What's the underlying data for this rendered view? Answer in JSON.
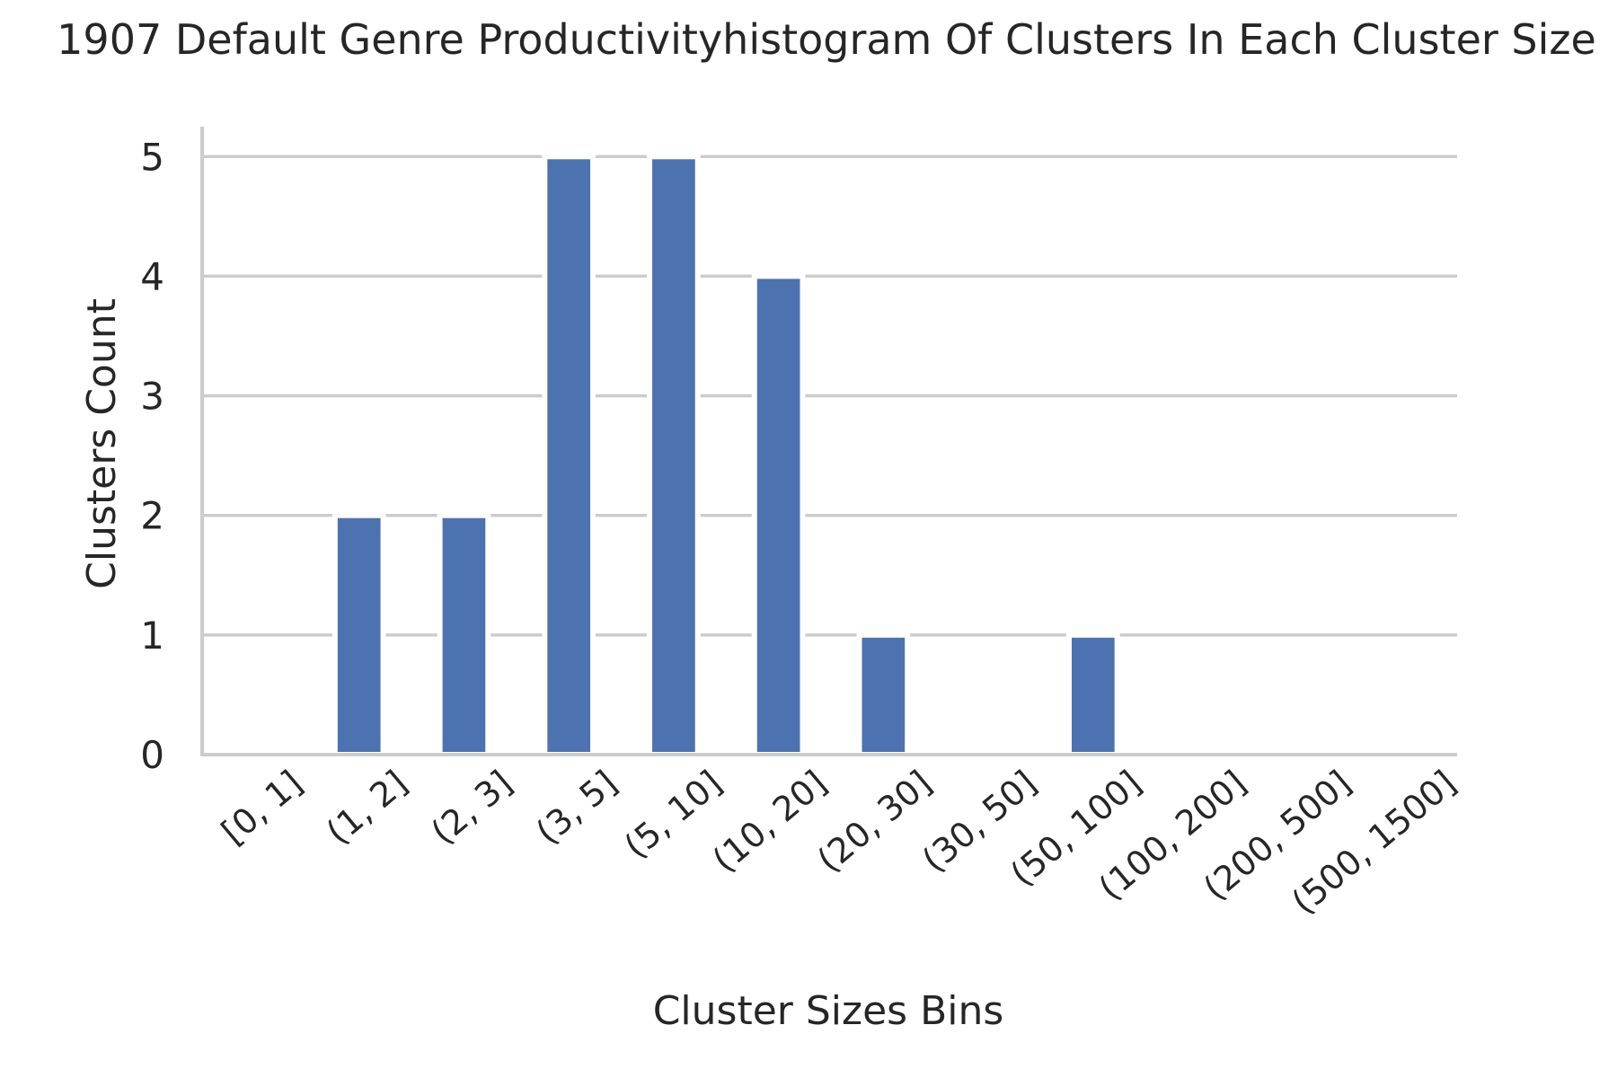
{
  "chart_data": {
    "type": "bar",
    "title": "1907 Default Genre Productivityhistogram Of Clusters In Each Cluster Size",
    "xlabel": "Cluster Sizes Bins",
    "ylabel": "Clusters Count",
    "categories": [
      "[0, 1]",
      "(1, 2]",
      "(2, 3]",
      "(3, 5]",
      "(5, 10]",
      "(10, 20]",
      "(20, 30]",
      "(30, 50]",
      "(50, 100]",
      "(100, 200]",
      "(200, 500]",
      "(500, 1500]"
    ],
    "values": [
      0,
      2,
      2,
      5,
      5,
      4,
      1,
      0,
      1,
      0,
      0,
      0
    ],
    "ylim": [
      0,
      5.25
    ],
    "yticks": [
      0,
      1,
      2,
      3,
      4,
      5
    ],
    "grid": "horizontal",
    "legend": "none",
    "bar_color": "#4c72b0",
    "grid_color": "#cccccc",
    "axis_color": "#cccccc"
  }
}
